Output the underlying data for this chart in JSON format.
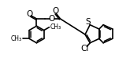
{
  "bg": "#ffffff",
  "lc": "#000000",
  "lw": 1.2,
  "fs": 7.5,
  "figsize": [
    1.65,
    0.97
  ],
  "dpi": 100,
  "xlim": [
    0,
    165
  ],
  "ylim": [
    0,
    97
  ]
}
